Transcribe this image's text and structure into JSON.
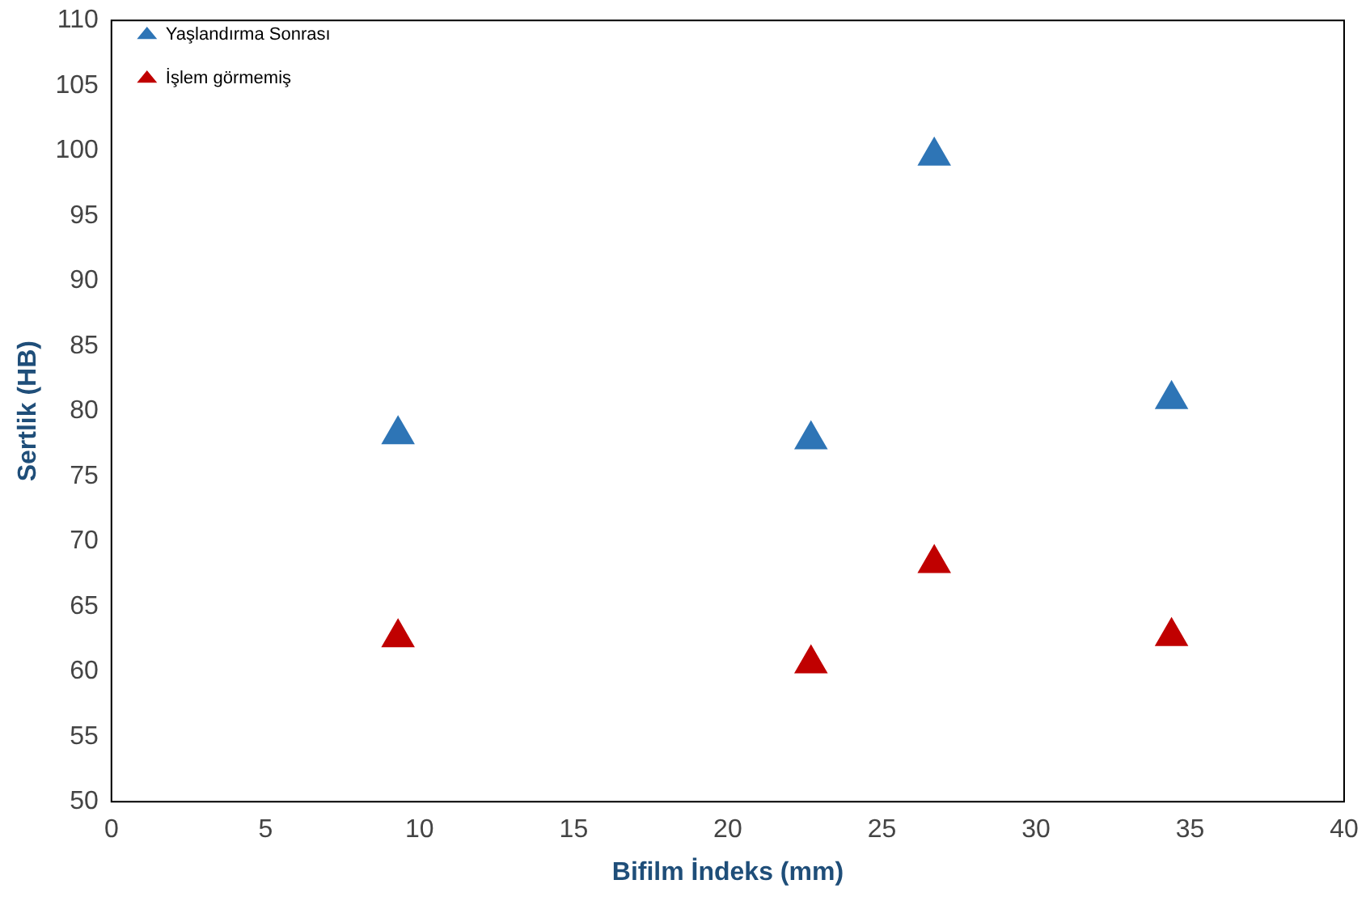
{
  "chart_data": {
    "type": "scatter",
    "xlabel": "Bifilm İndeks (mm)",
    "ylabel": "Sertlik (HB)",
    "x": [
      9.3,
      22.7,
      26.7,
      34.4
    ],
    "series": [
      {
        "name": "Yaşlandırma Sonrası",
        "color": "#2e75b6",
        "values": [
          78.2,
          77.8,
          99.6,
          80.9
        ]
      },
      {
        "name": "İşlem görmemiş",
        "color": "#c00000",
        "values": [
          62.6,
          60.6,
          68.3,
          62.7
        ]
      }
    ],
    "xlim": [
      0,
      40
    ],
    "xticks": [
      0,
      5,
      10,
      15,
      20,
      25,
      30,
      35,
      40
    ],
    "ylim": [
      50,
      110
    ],
    "yticks": [
      50,
      55,
      60,
      65,
      70,
      75,
      80,
      85,
      90,
      95,
      100,
      105,
      110
    ],
    "grid": false,
    "legend": "top left",
    "marker": "triangle"
  }
}
